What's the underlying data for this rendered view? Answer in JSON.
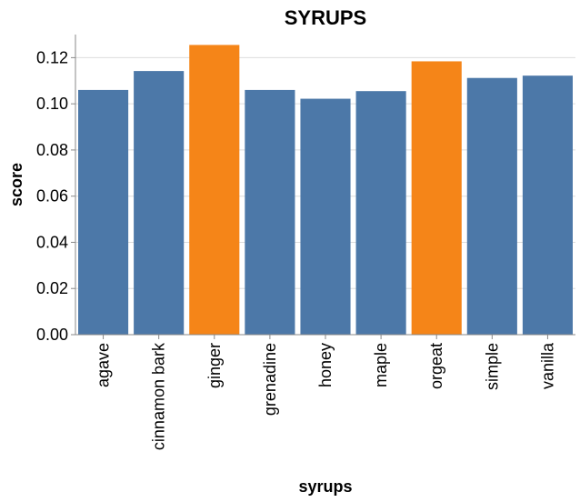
{
  "chart_data": {
    "type": "bar",
    "title": "SYRUPS",
    "xlabel": "syrups",
    "ylabel": "score",
    "categories": [
      "agave",
      "cinnamon bark",
      "ginger",
      "grenadine",
      "honey",
      "maple",
      "orgeat",
      "simple",
      "vanilla"
    ],
    "values": [
      0.106,
      0.1142,
      0.1255,
      0.106,
      0.1022,
      0.1055,
      0.1184,
      0.1112,
      0.1122
    ],
    "highlighted": [
      false,
      false,
      true,
      false,
      false,
      false,
      true,
      false,
      false
    ],
    "ylim": [
      0,
      0.13
    ],
    "yticks": [
      "0.00",
      "0.02",
      "0.04",
      "0.06",
      "0.08",
      "0.10",
      "0.12"
    ],
    "grid": true,
    "colors": {
      "default": "#4c78a8",
      "highlight": "#f58518"
    }
  }
}
